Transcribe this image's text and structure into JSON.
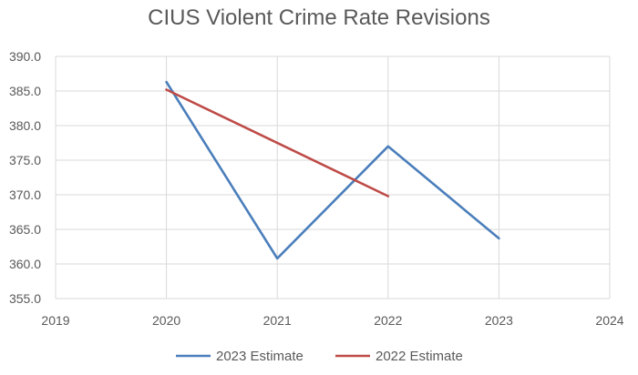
{
  "chart_data": {
    "type": "line",
    "title": "CIUS Violent Crime Rate Revisions",
    "xlabel": "",
    "ylabel": "",
    "xlim": [
      2019,
      2024
    ],
    "ylim": [
      355.0,
      390.0
    ],
    "x_ticks": [
      "2019",
      "2020",
      "2021",
      "2022",
      "2023",
      "2024"
    ],
    "y_ticks": [
      "355.0",
      "360.0",
      "365.0",
      "370.0",
      "375.0",
      "380.0",
      "385.0",
      "390.0"
    ],
    "grid": true,
    "legend_position": "bottom",
    "series": [
      {
        "name": "2023 Estimate",
        "color": "#4a7ebb",
        "points": [
          [
            2020,
            386.3
          ],
          [
            2021,
            360.8
          ],
          [
            2022,
            377.0
          ],
          [
            2023,
            363.7
          ]
        ]
      },
      {
        "name": "2022 Estimate",
        "color": "#be4b48",
        "points": [
          [
            2020,
            385.2
          ],
          [
            2022,
            369.8
          ]
        ]
      }
    ]
  }
}
